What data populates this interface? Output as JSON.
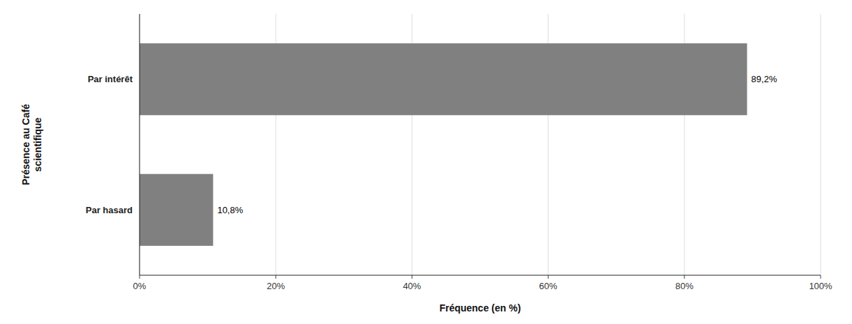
{
  "chart_data": {
    "type": "bar",
    "orientation": "horizontal",
    "categories": [
      "Par hasard",
      "Par intérêt"
    ],
    "values": [
      10.8,
      89.2
    ],
    "value_labels": [
      "10,8%",
      "89,2%"
    ],
    "data_labels": true,
    "color": "#808080",
    "xlabel": "Fréquence (en %)",
    "ylabel": "Présence au Café\nscientifique",
    "xlim": [
      0,
      100
    ],
    "xticks": [
      {
        "value": 0,
        "label": "0%"
      },
      {
        "value": 20,
        "label": "20%"
      },
      {
        "value": 40,
        "label": "40%"
      },
      {
        "value": 60,
        "label": "60%"
      },
      {
        "value": 80,
        "label": "80%"
      },
      {
        "value": 100,
        "label": "100%"
      }
    ],
    "grid": true
  }
}
